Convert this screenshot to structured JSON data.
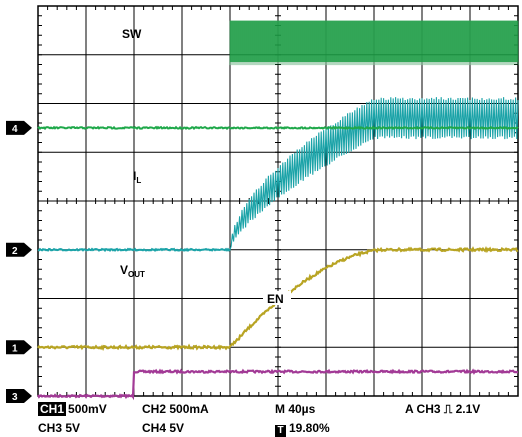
{
  "chart_data": {
    "type": "line",
    "grid": true,
    "x_divisions": 10,
    "y_divisions": 8,
    "series": [
      {
        "name": "SW",
        "channel": "4",
        "color": "#1fa84a",
        "units": "div",
        "baseline_div": 5.5,
        "step_div": 4.0,
        "step_top_div": 7.7,
        "step_bottom_div": 6.85,
        "description": "switching waveform"
      },
      {
        "name": "I",
        "subscript": "L",
        "channel": "2",
        "color": "#1ba3a8",
        "baseline_div": 3.0,
        "step_div": 4.0,
        "level_after_div": 6.1,
        "ripple_div": 0.8
      },
      {
        "name": "V",
        "subscript": "OUT",
        "channel": "1",
        "color": "#b8a423",
        "baseline_div": 1.0,
        "rise_start_div": 4.0,
        "rise_end_div": 7.2,
        "level_after_div": 2.0
      },
      {
        "name": "EN",
        "channel": "3",
        "color": "#a23a96",
        "baseline_div": 0.0,
        "step_div": 2.0,
        "level_after_div": 0.5
      }
    ]
  },
  "markers": [
    {
      "number": "4",
      "color": "#1fa84a"
    },
    {
      "number": "2",
      "color": "#1ba3a8"
    },
    {
      "number": "1",
      "color": "#b8a423"
    },
    {
      "number": "3",
      "color": "#a23a96"
    }
  ],
  "labels": {
    "sw": "SW",
    "il_main": "I",
    "il_sub": "L",
    "vout_main": "V",
    "vout_sub": "OUT",
    "en": "EN"
  },
  "status": {
    "ch1_chip": "CH1",
    "ch1_scale": "500mV",
    "ch2": "CH2 500mA",
    "timebase": "M 40µs",
    "trigger": "A  CH3 ⎍ 2.1V",
    "ch3": "CH3 5V",
    "ch4": "CH4 5V",
    "t_chip": "T",
    "trigger_pos": "19.80%"
  }
}
